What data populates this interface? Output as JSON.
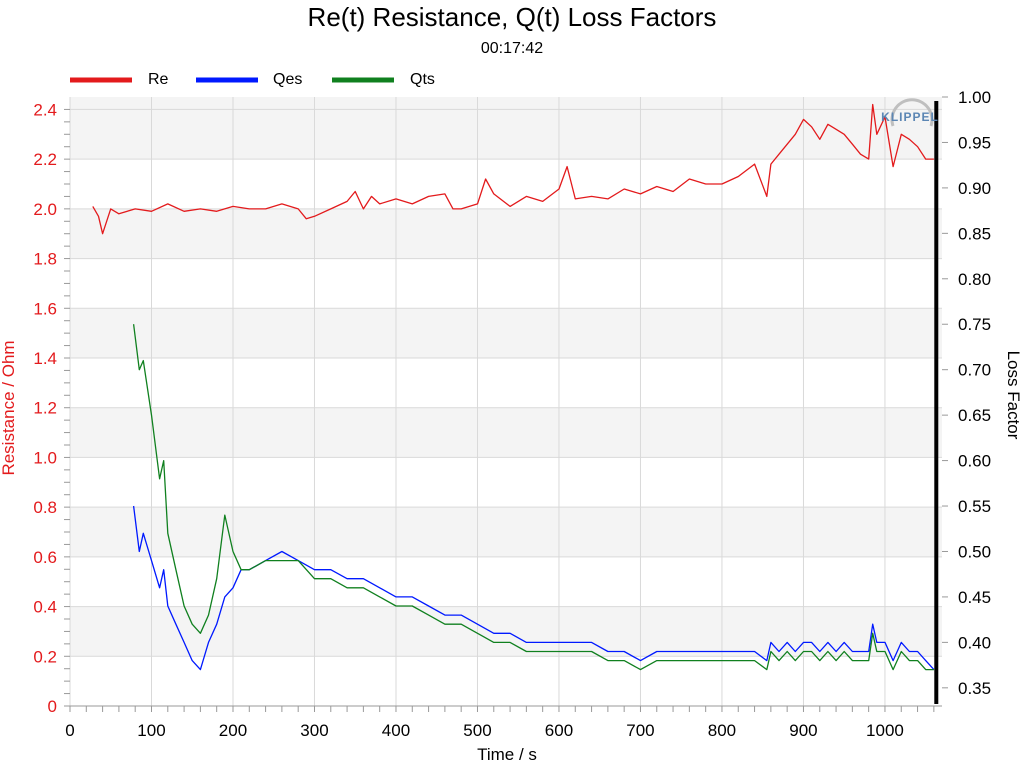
{
  "chart_data": {
    "type": "line",
    "title": "Re(t) Resistance, Q(t) Loss Factors",
    "subtitle": "00:17:42",
    "xlabel": "Time / s",
    "ylabel_left": "Resistance / Ohm",
    "ylabel_right": "Loss Factor",
    "xlim": [
      0,
      1070
    ],
    "ylim_left": [
      0,
      2.45
    ],
    "ylim_right": [
      0.33,
      1.0
    ],
    "x_ticks": [
      "0",
      "100",
      "200",
      "300",
      "400",
      "500",
      "600",
      "700",
      "800",
      "900",
      "1000"
    ],
    "y_left_ticks": [
      "0",
      "0.2",
      "0.4",
      "0.6",
      "0.8",
      "1.0",
      "1.2",
      "1.4",
      "1.6",
      "1.8",
      "2.0",
      "2.2",
      "2.4"
    ],
    "y_right_ticks": [
      "0.35",
      "0.40",
      "0.45",
      "0.50",
      "0.55",
      "0.60",
      "0.65",
      "0.70",
      "0.75",
      "0.80",
      "0.85",
      "0.90",
      "0.95",
      "1.00"
    ],
    "grid": true,
    "legend_position": "top-left",
    "logo_text": "KLIPPEL",
    "colors": {
      "Re": "#e31a1c",
      "Qes": "#0019ff",
      "Qts": "#10801f",
      "left_axis": "#e31a1c",
      "band": "#f4f4f4",
      "grid": "#d9d9d9"
    },
    "series": [
      {
        "name": "Re",
        "axis": "left",
        "color": "#e31a1c",
        "x": [
          28,
          35,
          40,
          50,
          60,
          80,
          100,
          120,
          140,
          160,
          180,
          200,
          220,
          240,
          260,
          280,
          290,
          300,
          320,
          340,
          350,
          360,
          370,
          380,
          400,
          420,
          440,
          460,
          470,
          480,
          500,
          510,
          520,
          540,
          560,
          580,
          600,
          610,
          620,
          640,
          660,
          680,
          700,
          720,
          740,
          760,
          780,
          800,
          820,
          840,
          855,
          860,
          870,
          880,
          890,
          900,
          910,
          920,
          930,
          940,
          950,
          960,
          970,
          980,
          985,
          990,
          1000,
          1010,
          1020,
          1030,
          1040,
          1050,
          1060
        ],
        "y": [
          2.01,
          1.97,
          1.9,
          2.0,
          1.98,
          2.0,
          1.99,
          2.02,
          1.99,
          2.0,
          1.99,
          2.01,
          2.0,
          2.0,
          2.02,
          2.0,
          1.96,
          1.97,
          2.0,
          2.03,
          2.07,
          2.0,
          2.05,
          2.02,
          2.04,
          2.02,
          2.05,
          2.06,
          2.0,
          2.0,
          2.02,
          2.12,
          2.06,
          2.01,
          2.05,
          2.03,
          2.08,
          2.17,
          2.04,
          2.05,
          2.04,
          2.08,
          2.06,
          2.09,
          2.07,
          2.12,
          2.1,
          2.1,
          2.13,
          2.18,
          2.05,
          2.18,
          2.22,
          2.26,
          2.3,
          2.36,
          2.33,
          2.28,
          2.34,
          2.32,
          2.3,
          2.26,
          2.22,
          2.2,
          2.42,
          2.3,
          2.37,
          2.17,
          2.3,
          2.28,
          2.25,
          2.2,
          2.2
        ]
      },
      {
        "name": "Qes",
        "axis": "right",
        "color": "#0019ff",
        "x": [
          78,
          85,
          90,
          100,
          110,
          115,
          120,
          130,
          140,
          150,
          160,
          170,
          180,
          190,
          200,
          210,
          220,
          240,
          260,
          280,
          300,
          320,
          340,
          360,
          380,
          400,
          420,
          440,
          460,
          480,
          500,
          520,
          540,
          560,
          580,
          600,
          620,
          640,
          660,
          680,
          700,
          720,
          740,
          760,
          780,
          800,
          820,
          840,
          855,
          860,
          870,
          880,
          890,
          900,
          910,
          920,
          930,
          940,
          950,
          960,
          970,
          980,
          985,
          990,
          1000,
          1010,
          1020,
          1030,
          1040,
          1050,
          1060
        ],
        "y": [
          0.55,
          0.5,
          0.52,
          0.49,
          0.46,
          0.48,
          0.44,
          0.42,
          0.4,
          0.38,
          0.37,
          0.4,
          0.42,
          0.45,
          0.46,
          0.48,
          0.48,
          0.49,
          0.5,
          0.49,
          0.48,
          0.48,
          0.47,
          0.47,
          0.46,
          0.45,
          0.45,
          0.44,
          0.43,
          0.43,
          0.42,
          0.41,
          0.41,
          0.4,
          0.4,
          0.4,
          0.4,
          0.4,
          0.39,
          0.39,
          0.38,
          0.39,
          0.39,
          0.39,
          0.39,
          0.39,
          0.39,
          0.39,
          0.38,
          0.4,
          0.39,
          0.4,
          0.39,
          0.4,
          0.4,
          0.39,
          0.4,
          0.39,
          0.4,
          0.39,
          0.39,
          0.39,
          0.42,
          0.4,
          0.4,
          0.38,
          0.4,
          0.39,
          0.39,
          0.38,
          0.37
        ]
      },
      {
        "name": "Qts",
        "axis": "right",
        "color": "#10801f",
        "x": [
          78,
          85,
          90,
          100,
          110,
          115,
          120,
          130,
          140,
          150,
          160,
          170,
          180,
          190,
          200,
          210,
          220,
          240,
          260,
          280,
          300,
          320,
          340,
          360,
          380,
          400,
          420,
          440,
          460,
          480,
          500,
          520,
          540,
          560,
          580,
          600,
          620,
          640,
          660,
          680,
          700,
          720,
          740,
          760,
          780,
          800,
          820,
          840,
          855,
          860,
          870,
          880,
          890,
          900,
          910,
          920,
          930,
          940,
          950,
          960,
          970,
          980,
          985,
          990,
          1000,
          1010,
          1020,
          1030,
          1040,
          1050,
          1060
        ],
        "y": [
          0.75,
          0.7,
          0.71,
          0.65,
          0.58,
          0.6,
          0.52,
          0.48,
          0.44,
          0.42,
          0.41,
          0.43,
          0.47,
          0.54,
          0.5,
          0.48,
          0.48,
          0.49,
          0.49,
          0.49,
          0.47,
          0.47,
          0.46,
          0.46,
          0.45,
          0.44,
          0.44,
          0.43,
          0.42,
          0.42,
          0.41,
          0.4,
          0.4,
          0.39,
          0.39,
          0.39,
          0.39,
          0.39,
          0.38,
          0.38,
          0.37,
          0.38,
          0.38,
          0.38,
          0.38,
          0.38,
          0.38,
          0.38,
          0.37,
          0.39,
          0.38,
          0.39,
          0.38,
          0.39,
          0.39,
          0.38,
          0.39,
          0.38,
          0.39,
          0.38,
          0.38,
          0.38,
          0.41,
          0.39,
          0.39,
          0.37,
          0.39,
          0.38,
          0.38,
          0.37,
          0.37
        ]
      }
    ]
  }
}
